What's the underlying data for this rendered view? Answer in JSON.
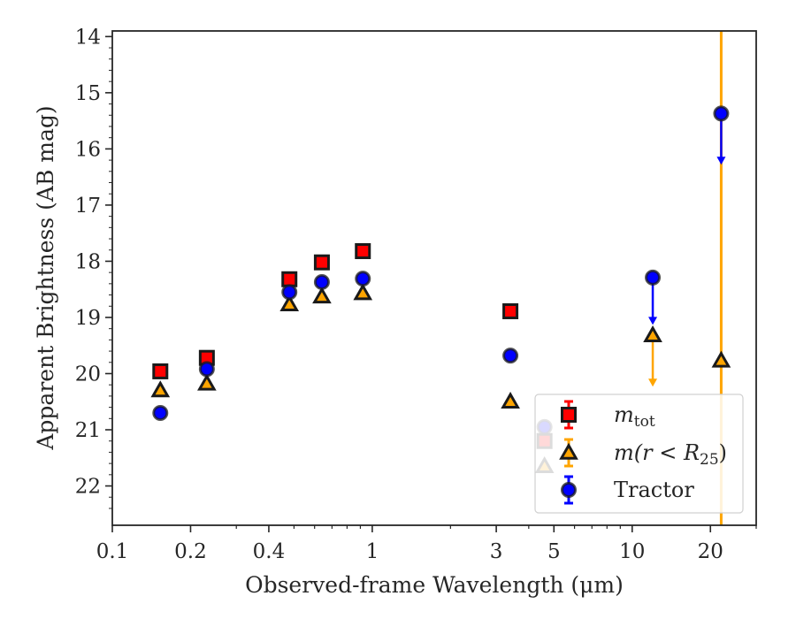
{
  "chart_data": {
    "type": "scatter",
    "xlabel": "Observed-frame Wavelength (μm)",
    "ylabel": "Apparent Brightness (AB mag)",
    "x_scale": "log",
    "xlim": [
      0.1,
      30
    ],
    "ylim": [
      22.7,
      13.9
    ],
    "y_inverted": true,
    "x_ticks": [
      0.1,
      0.2,
      0.4,
      1,
      3,
      5,
      10,
      20
    ],
    "x_tick_labels": [
      "0.1",
      "0.2",
      "0.4",
      "1",
      "3",
      "5",
      "10",
      "20"
    ],
    "y_ticks": [
      14,
      15,
      16,
      17,
      18,
      19,
      20,
      21,
      22
    ],
    "y_tick_labels": [
      "14",
      "15",
      "16",
      "17",
      "18",
      "19",
      "20",
      "21",
      "22"
    ],
    "grid": false,
    "legend_position": "lower-right",
    "series": [
      {
        "name": "m_tot",
        "legend": {
          "main": "m",
          "sub": "tot"
        },
        "marker": "square",
        "color": "#ff0000",
        "edge_color": "#1a1a1a",
        "points": [
          {
            "x": 0.153,
            "y": 19.96
          },
          {
            "x": 0.231,
            "y": 19.72
          },
          {
            "x": 0.48,
            "y": 18.32
          },
          {
            "x": 0.64,
            "y": 18.02
          },
          {
            "x": 0.92,
            "y": 17.82
          },
          {
            "x": 3.4,
            "y": 18.89
          },
          {
            "x": 4.6,
            "y": 21.2
          }
        ]
      },
      {
        "name": "m(r < R25)",
        "legend": {
          "main": "m(r < R",
          "sub": "25",
          "tail": ")"
        },
        "marker": "triangle",
        "color": "#ffa500",
        "edge_color": "#1a1a1a",
        "points": [
          {
            "x": 0.153,
            "y": 20.3
          },
          {
            "x": 0.231,
            "y": 20.18
          },
          {
            "x": 0.48,
            "y": 18.77
          },
          {
            "x": 0.64,
            "y": 18.63
          },
          {
            "x": 0.92,
            "y": 18.57
          },
          {
            "x": 3.4,
            "y": 20.5
          },
          {
            "x": 4.6,
            "y": 21.65
          },
          {
            "x": 12.0,
            "y": 19.32,
            "upper_limit_to": 20.2
          },
          {
            "x": 22.0,
            "y": 19.77,
            "full_error_bar": true
          }
        ]
      },
      {
        "name": "Tractor",
        "legend": {
          "main": "Tractor"
        },
        "marker": "circle",
        "color": "#0000ff",
        "edge_color": "#1a1a1a",
        "points": [
          {
            "x": 0.153,
            "y": 20.7
          },
          {
            "x": 0.231,
            "y": 19.92
          },
          {
            "x": 0.48,
            "y": 18.55
          },
          {
            "x": 0.64,
            "y": 18.37
          },
          {
            "x": 0.92,
            "y": 18.31
          },
          {
            "x": 3.4,
            "y": 19.68
          },
          {
            "x": 4.6,
            "y": 20.95
          },
          {
            "x": 12.0,
            "y": 18.29,
            "upper_limit_to": 19.1
          },
          {
            "x": 22.0,
            "y": 15.37,
            "upper_limit_to": 16.25
          }
        ]
      }
    ]
  }
}
